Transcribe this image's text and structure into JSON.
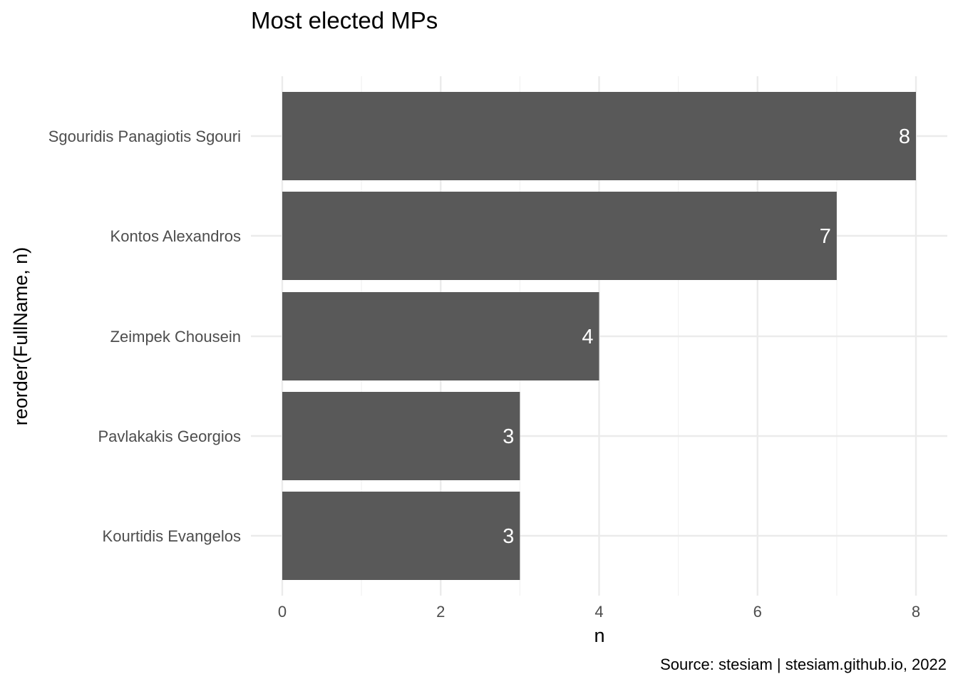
{
  "chart_data": {
    "type": "bar",
    "orientation": "horizontal",
    "title": "Most elected MPs",
    "xlabel": "n",
    "ylabel": "reorder(FullName, n)",
    "caption": "Source: stesiam | stesiam.github.io, 2022",
    "categories": [
      "Sgouridis Panagiotis Sgouri",
      "Kontos Alexandros",
      "Zeimpek Chousein",
      "Pavlakakis Georgios",
      "Kourtidis Evangelos"
    ],
    "values": [
      8,
      7,
      4,
      3,
      3
    ],
    "data_labels": [
      "8",
      "7",
      "4",
      "3",
      "3"
    ],
    "xlim": [
      0,
      8
    ],
    "x_ticks": [
      0,
      2,
      4,
      6,
      8
    ],
    "x_tick_labels": [
      "0",
      "2",
      "4",
      "6",
      "8"
    ],
    "grid": true,
    "legend": "none",
    "bar_color": "#595959",
    "label_color": "#ffffff"
  }
}
